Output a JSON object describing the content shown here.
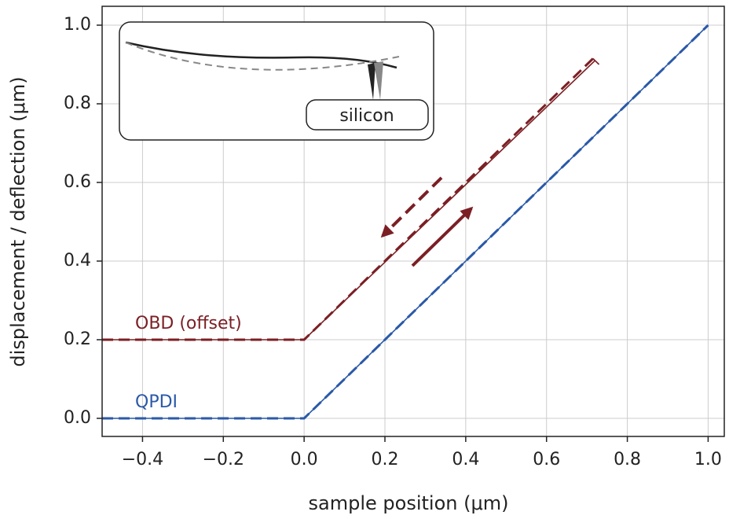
{
  "chart_data": {
    "type": "line",
    "xlabel": "sample position (μm)",
    "ylabel": "displacement / deflection (μm)",
    "inset_label": "silicon",
    "xlim": [
      -0.5,
      1.04
    ],
    "ylim": [
      -0.046,
      1.048
    ],
    "xticks": [
      {
        "value": -0.4,
        "label": "−0.4"
      },
      {
        "value": -0.2,
        "label": "−0.2"
      },
      {
        "value": 0,
        "label": "0.0"
      },
      0.2,
      0.4,
      0.6,
      0.8,
      {
        "value": 1,
        "label": "1.0"
      }
    ],
    "yticks": [
      {
        "value": 0,
        "label": "0.0"
      },
      0.2,
      0.4,
      0.6,
      0.8,
      {
        "value": 1,
        "label": "1.0"
      }
    ],
    "grid": true,
    "series": [
      {
        "name": "OBD (offset)",
        "color": "#7b1f24",
        "dashed": false,
        "x": [
          -0.5,
          0,
          0.72,
          0.73,
          0.715
        ],
        "values": [
          0.2,
          0.2,
          0.91,
          0.9,
          0.915
        ]
      },
      {
        "color": "#7b1f24",
        "dashed": true,
        "x": [
          0.715,
          0.0,
          -0.5
        ],
        "values": [
          0.915,
          0.2,
          0.2
        ]
      },
      {
        "name": "QPDI",
        "color": "#2b59a8",
        "dashed": false,
        "x": [
          -0.5,
          0,
          1
        ],
        "values": [
          0,
          0,
          1
        ]
      },
      {
        "color": "#2b59a8",
        "dashed": true,
        "x": [
          -0.5,
          0,
          1
        ],
        "values": [
          0,
          0,
          1
        ]
      }
    ]
  }
}
